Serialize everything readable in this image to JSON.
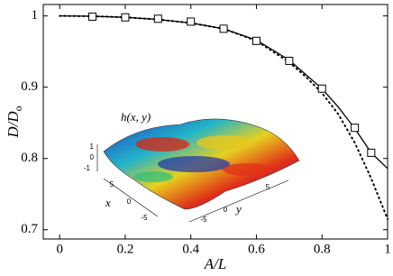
{
  "chart_data": {
    "type": "line",
    "xlabel": "A/L",
    "ylabel": "D/D",
    "ylabel_sub": "o",
    "xlim": [
      -0.05,
      1.0
    ],
    "ylim": [
      0.687,
      1.016
    ],
    "xticks": [
      0,
      0.2,
      0.4,
      0.6,
      0.8,
      1
    ],
    "yticks": [
      0.7,
      0.8,
      0.9,
      1
    ],
    "series": [
      {
        "style": "solid",
        "color": "#000000",
        "x": [
          0,
          0.1,
          0.2,
          0.3,
          0.4,
          0.5,
          0.6,
          0.7,
          0.8,
          0.85,
          0.9,
          0.95,
          1.0
        ],
        "values": [
          1.0,
          0.9995,
          0.998,
          0.995,
          0.99,
          0.982,
          0.966,
          0.938,
          0.898,
          0.872,
          0.842,
          0.808,
          0.786
        ]
      },
      {
        "style": "dotted",
        "color": "#000000",
        "x": [
          0,
          0.1,
          0.2,
          0.3,
          0.4,
          0.5,
          0.6,
          0.7,
          0.75,
          0.8,
          0.85,
          0.9,
          0.95,
          1.0
        ],
        "values": [
          1.0,
          0.9995,
          0.998,
          0.995,
          0.99,
          0.982,
          0.965,
          0.935,
          0.915,
          0.892,
          0.862,
          0.822,
          0.772,
          0.715
        ]
      },
      {
        "style": "markers",
        "color": "#000000",
        "x": [
          0.1,
          0.2,
          0.3,
          0.4,
          0.5,
          0.6,
          0.7,
          0.8,
          0.9,
          0.95
        ],
        "values": [
          0.999,
          0.998,
          0.996,
          0.992,
          0.982,
          0.965,
          0.937,
          0.898,
          0.843,
          0.808
        ]
      }
    ],
    "inset": {
      "zlabel": "h(x, y)",
      "xlabel": "x",
      "ylabel": "y",
      "zticks": [
        1,
        0,
        -1
      ],
      "xticks": [
        5,
        0,
        -5
      ],
      "yticks": [
        -5,
        0,
        5
      ]
    }
  }
}
